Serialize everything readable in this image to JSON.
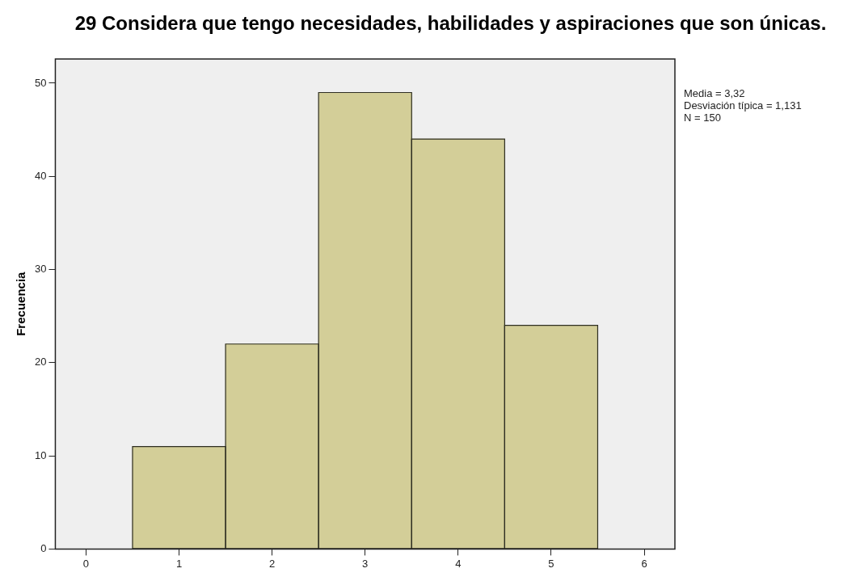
{
  "chart_data": {
    "type": "histogram",
    "title": "29 Considera que tengo necesidades, habilidades y aspiraciones que son únicas.",
    "ylabel": "Frecuencia",
    "bins": [
      0.5,
      1.5,
      2.5,
      3.5,
      4.5,
      5.5
    ],
    "values": [
      11,
      22,
      49,
      44,
      24
    ],
    "color": "#d3ce98",
    "xlim": [
      -0.33,
      6.33
    ],
    "xticks": [
      0,
      1,
      2,
      3,
      4,
      5,
      6
    ],
    "ylim": [
      0,
      52.6
    ],
    "yticks": [
      0,
      10,
      20,
      30,
      40,
      50
    ],
    "annotations": [
      "Media = 3,32",
      "Desviación típica = 1,131",
      "N = 150"
    ],
    "grid": false,
    "legend": false
  }
}
